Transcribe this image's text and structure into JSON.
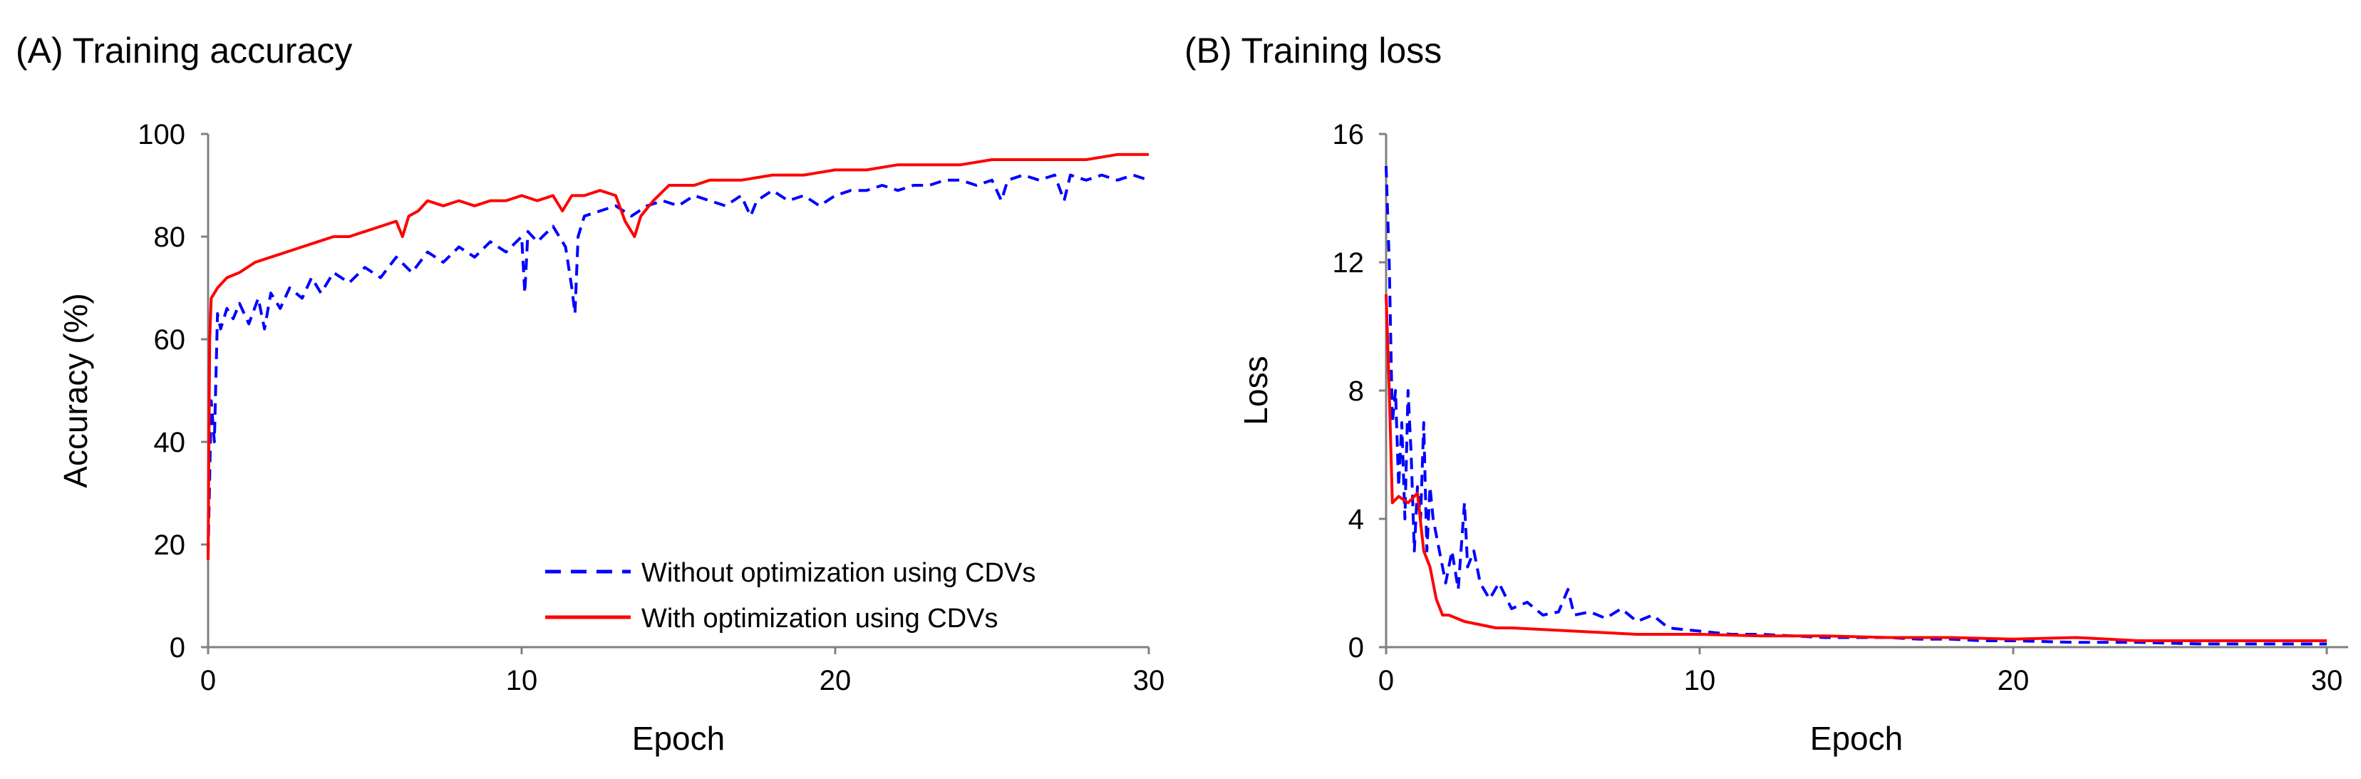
{
  "chart_data": [
    {
      "type": "line",
      "title": "(A) Training accuracy",
      "xlabel": "Epoch",
      "ylabel": "Accuracy (%)",
      "xlim": [
        0,
        30
      ],
      "ylim": [
        0,
        100
      ],
      "xticks": [
        0,
        10,
        20,
        30
      ],
      "xtick_labels": [
        "0",
        "10",
        "20",
        "30"
      ],
      "yticks": [
        0,
        20,
        40,
        60,
        80,
        100
      ],
      "ytick_labels": [
        "0",
        "20",
        "40",
        "60",
        "80",
        "100"
      ],
      "grid": false,
      "legend_position": "bottom-right",
      "series": [
        {
          "name": "Without optimization using CDVs",
          "color": "#0000ff",
          "style": "dashed",
          "x": [
            0,
            0.1,
            0.2,
            0.3,
            0.4,
            0.6,
            0.8,
            1.0,
            1.3,
            1.6,
            1.8,
            2.0,
            2.3,
            2.6,
            3.0,
            3.3,
            3.6,
            4.0,
            4.5,
            5.0,
            5.5,
            6.0,
            6.5,
            7.0,
            7.5,
            8.0,
            8.5,
            9.0,
            9.5,
            10.0,
            10.1,
            10.2,
            10.5,
            11.0,
            11.4,
            11.6,
            11.7,
            11.8,
            12.0,
            12.5,
            13.0,
            13.5,
            14.0,
            14.5,
            15.0,
            15.5,
            16.0,
            16.5,
            17.0,
            17.3,
            17.5,
            18.0,
            18.5,
            19.0,
            19.5,
            20.0,
            20.5,
            21.0,
            21.5,
            22.0,
            22.5,
            23.0,
            23.5,
            24.0,
            24.5,
            25.0,
            25.3,
            25.5,
            26.0,
            26.5,
            27.0,
            27.3,
            27.5,
            28.0,
            28.5,
            29.0,
            29.5,
            30.0
          ],
          "values": [
            18,
            48,
            40,
            65,
            62,
            66,
            64,
            67,
            63,
            68,
            62,
            69,
            66,
            70,
            68,
            72,
            69,
            73,
            71,
            74,
            72,
            76,
            73,
            77,
            75,
            78,
            76,
            79,
            77,
            80,
            69,
            81,
            79,
            82,
            78,
            70,
            65,
            80,
            84,
            85,
            86,
            84,
            86,
            87,
            86,
            88,
            87,
            86,
            88,
            84,
            87,
            89,
            87,
            88,
            86,
            88,
            89,
            89,
            90,
            89,
            90,
            90,
            91,
            91,
            90,
            91,
            87,
            91,
            92,
            91,
            92,
            87,
            92,
            91,
            92,
            91,
            92,
            91
          ]
        },
        {
          "name": "With optimization using CDVs",
          "color": "#ff0000",
          "style": "solid",
          "x": [
            0,
            0.05,
            0.1,
            0.3,
            0.6,
            1.0,
            1.5,
            2.0,
            2.5,
            3.0,
            3.5,
            4.0,
            4.5,
            5.0,
            5.5,
            6.0,
            6.2,
            6.4,
            6.7,
            7.0,
            7.5,
            8.0,
            8.5,
            9.0,
            9.5,
            10.0,
            10.5,
            11.0,
            11.3,
            11.6,
            12.0,
            12.5,
            13.0,
            13.3,
            13.6,
            13.8,
            14.2,
            14.7,
            15.0,
            15.5,
            16.0,
            17.0,
            18.0,
            19.0,
            20.0,
            21.0,
            22.0,
            23.0,
            24.0,
            25.0,
            26.0,
            27.0,
            28.0,
            29.0,
            30.0
          ],
          "values": [
            17,
            60,
            68,
            70,
            72,
            73,
            75,
            76,
            77,
            78,
            79,
            80,
            80,
            81,
            82,
            83,
            80,
            84,
            85,
            87,
            86,
            87,
            86,
            87,
            87,
            88,
            87,
            88,
            85,
            88,
            88,
            89,
            88,
            83,
            80,
            84,
            87,
            90,
            90,
            90,
            91,
            91,
            92,
            92,
            93,
            93,
            94,
            94,
            94,
            95,
            95,
            95,
            95,
            96,
            96
          ]
        }
      ]
    },
    {
      "type": "line",
      "title": "(B) Training loss",
      "xlabel": "Epoch",
      "ylabel": "Loss",
      "xlim": [
        0,
        30
      ],
      "ylim": [
        0,
        16
      ],
      "xticks": [
        0,
        10,
        20,
        30
      ],
      "xtick_labels": [
        "0",
        "10",
        "20",
        "30"
      ],
      "yticks": [
        0,
        4,
        8,
        12,
        16
      ],
      "ytick_labels": [
        "0",
        "4",
        "8",
        "12",
        "16"
      ],
      "grid": false,
      "series": [
        {
          "name": "Without optimization using CDVs",
          "color": "#0000ff",
          "style": "dashed",
          "x": [
            0,
            0.1,
            0.2,
            0.3,
            0.4,
            0.5,
            0.6,
            0.7,
            0.8,
            0.9,
            1.0,
            1.1,
            1.2,
            1.3,
            1.4,
            1.5,
            1.7,
            1.9,
            2.1,
            2.3,
            2.5,
            2.6,
            2.8,
            3.0,
            3.3,
            3.6,
            4.0,
            4.5,
            5.0,
            5.5,
            5.8,
            6.0,
            6.5,
            7.0,
            7.5,
            8.0,
            8.5,
            9.0,
            10.0,
            11.0,
            12.0,
            13.0,
            14.0,
            15.0,
            16.0,
            17.0,
            18.0,
            19.0,
            20.0,
            22.0,
            24.0,
            26.0,
            28.0,
            30.0
          ],
          "values": [
            15,
            12,
            7,
            8,
            5,
            7,
            4,
            8,
            6,
            3,
            5,
            4,
            7,
            3,
            5,
            4,
            3,
            2,
            3,
            1.8,
            4.5,
            2.5,
            3,
            2,
            1.5,
            2,
            1.2,
            1.4,
            1,
            1.1,
            1.8,
            1,
            1.1,
            0.9,
            1.2,
            0.8,
            1.0,
            0.6,
            0.5,
            0.4,
            0.4,
            0.35,
            0.3,
            0.3,
            0.3,
            0.25,
            0.25,
            0.2,
            0.2,
            0.15,
            0.15,
            0.1,
            0.1,
            0.1
          ]
        },
        {
          "name": "With optimization using CDVs",
          "color": "#ff0000",
          "style": "solid",
          "x": [
            0,
            0.1,
            0.2,
            0.4,
            0.7,
            1.0,
            1.2,
            1.4,
            1.6,
            1.8,
            2.0,
            2.5,
            3.0,
            3.5,
            4.0,
            5.0,
            6.0,
            7.0,
            8.0,
            9.0,
            10.0,
            12.0,
            14.0,
            16.0,
            18.0,
            20.0,
            22.0,
            24.0,
            26.0,
            28.0,
            30.0
          ],
          "values": [
            11,
            8,
            4.5,
            4.7,
            4.5,
            4.8,
            3,
            2.5,
            1.5,
            1,
            1.0,
            0.8,
            0.7,
            0.6,
            0.6,
            0.55,
            0.5,
            0.45,
            0.4,
            0.4,
            0.4,
            0.35,
            0.35,
            0.3,
            0.3,
            0.25,
            0.3,
            0.2,
            0.2,
            0.2,
            0.2
          ]
        }
      ]
    }
  ]
}
